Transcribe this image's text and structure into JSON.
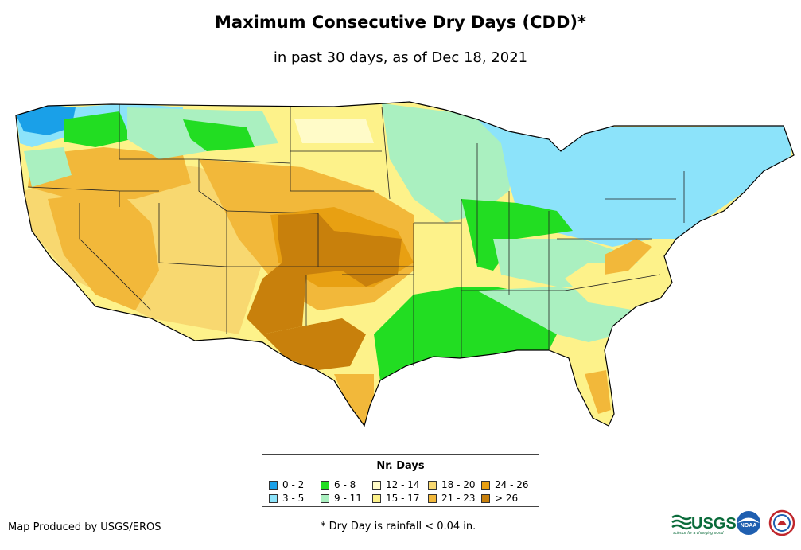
{
  "header": {
    "title": "Maximum Consecutive Dry Days (CDD)*",
    "subtitle": "in past 30 days, as of Dec 18, 2021"
  },
  "legend": {
    "title": "Nr. Days",
    "items": [
      {
        "label": "0 - 2",
        "color": "#1aa0e8"
      },
      {
        "label": "3 - 5",
        "color": "#8ce3fa"
      },
      {
        "label": "6 - 8",
        "color": "#22dd22"
      },
      {
        "label": "9 - 11",
        "color": "#aaf0c0"
      },
      {
        "label": "12 - 14",
        "color": "#fffbc8"
      },
      {
        "label": "15 - 17",
        "color": "#fdf28a"
      },
      {
        "label": "18 - 20",
        "color": "#f8d870"
      },
      {
        "label": "21 - 23",
        "color": "#f2b83a"
      },
      {
        "label": "24 - 26",
        "color": "#e8a012"
      },
      {
        "label": "> 26",
        "color": "#c8800c"
      }
    ]
  },
  "footer": {
    "credit": "Map Produced by USGS/EROS",
    "note": "* Dry Day is rainfall < 0.04 in."
  },
  "logos": {
    "usgs_text": "USGS",
    "usgs_tagline": "science for a changing world",
    "noaa_text": "NOAA"
  }
}
